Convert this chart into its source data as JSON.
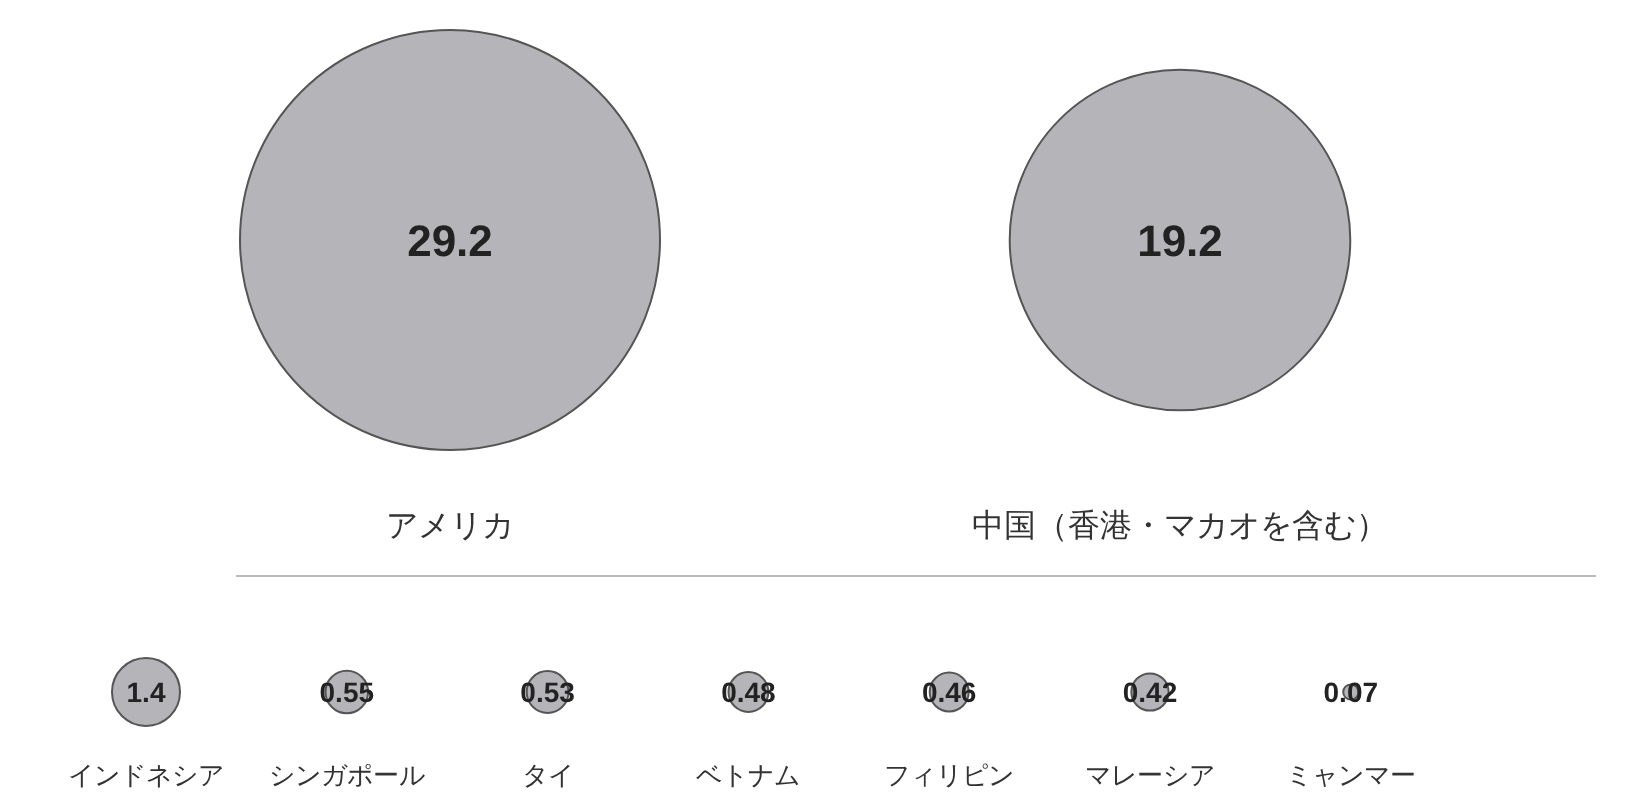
{
  "chart_data": [
    {
      "type": "other",
      "categories": [
        "アメリカ",
        "中国（香港・マカオを含む）"
      ],
      "values": [
        29.2,
        19.2
      ],
      "color": "#b5b5b9",
      "data_labels": true
    },
    {
      "type": "other",
      "categories": [
        "インドネシア",
        "シンガポール",
        "タイ",
        "ベトナム",
        "フィリピン",
        "マレーシア",
        "ミャンマー"
      ],
      "values": [
        1.4,
        0.55,
        0.53,
        0.48,
        0.46,
        0.42,
        0.07
      ],
      "color": "#b5b5b9",
      "data_labels": true
    }
  ]
}
